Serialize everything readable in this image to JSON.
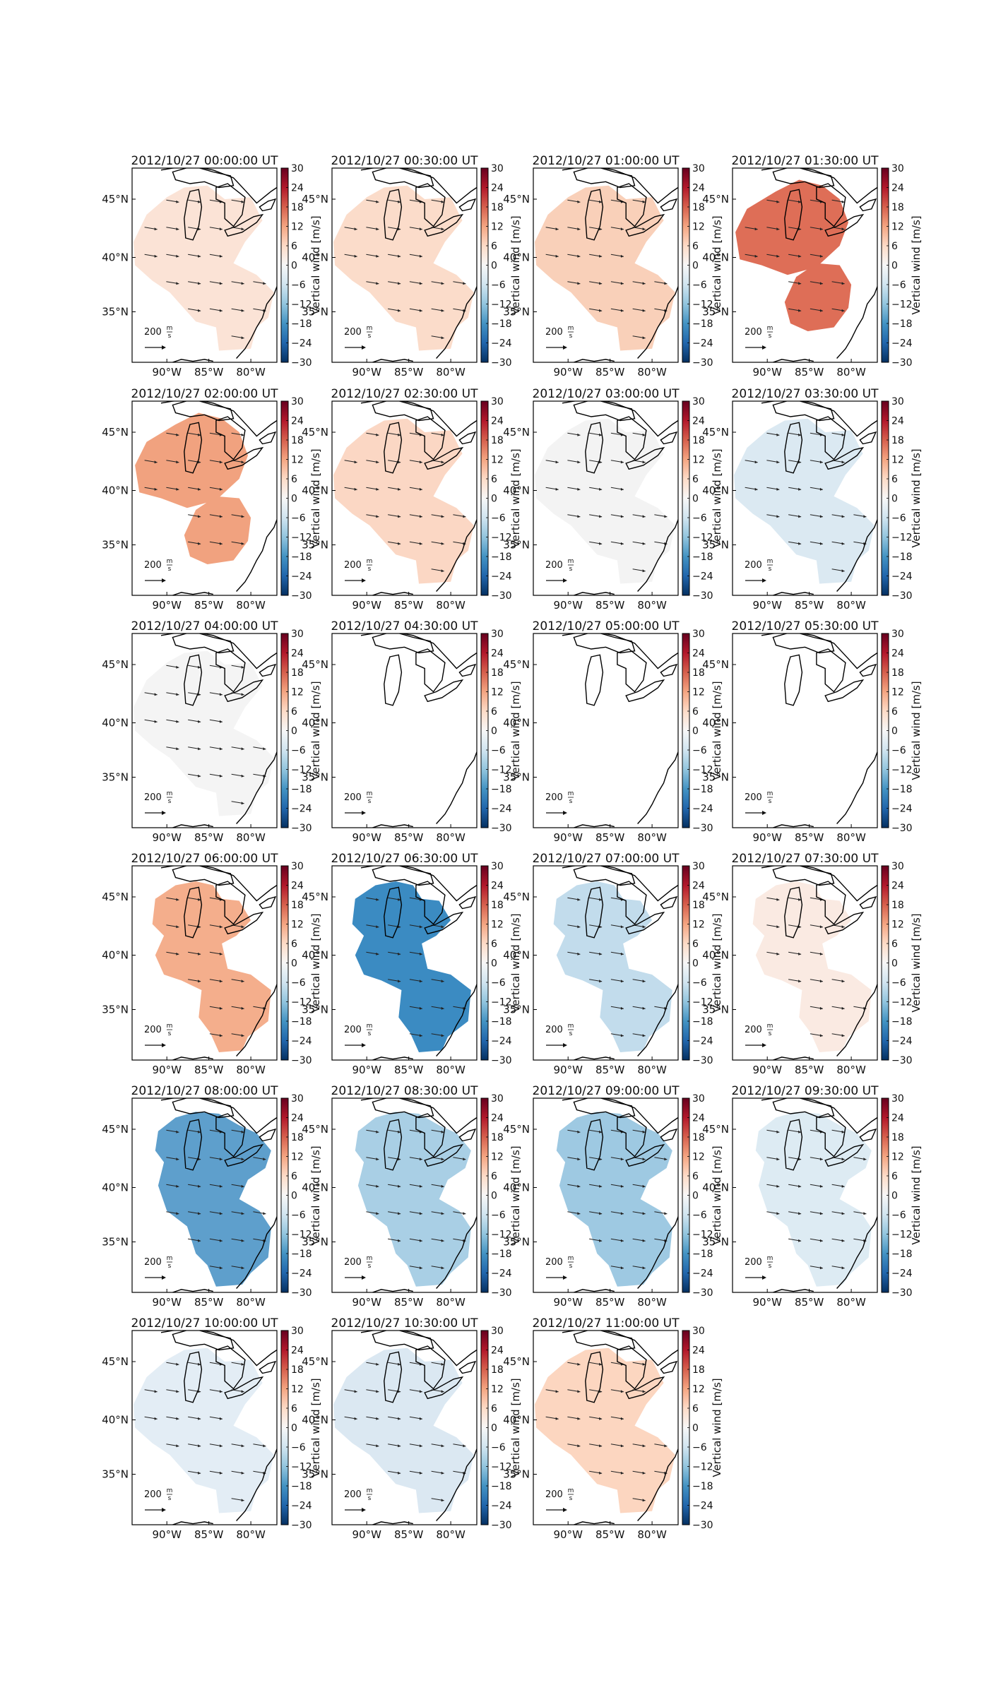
{
  "figure": {
    "colorbar": {
      "label": "Vertical wind [m/s]",
      "ticks": [
        "30",
        "24",
        "18",
        "12",
        "6",
        "0",
        "−6",
        "−12",
        "−18",
        "−24",
        "−30"
      ],
      "colormap": [
        "#67001f",
        "#b2182b",
        "#d6604d",
        "#f4a582",
        "#fddbc7",
        "#f7f7f7",
        "#d1e5f0",
        "#92c5de",
        "#4393c3",
        "#2166ac",
        "#053061"
      ],
      "range": [
        -30,
        30
      ]
    },
    "axes": {
      "xticks": [
        "90°W",
        "85°W",
        "80°W"
      ],
      "yticks": [
        "45°N",
        "40°N",
        "35°N"
      ]
    },
    "scale_key": {
      "number": "200",
      "unit_numerator": "m",
      "unit_denominator": "s"
    },
    "panels": [
      {
        "title": "2012/10/27 00:00:00 UT",
        "color": "#fbe3d6",
        "shape": "A"
      },
      {
        "title": "2012/10/27 00:30:00 UT",
        "color": "#fbdcca",
        "shape": "A"
      },
      {
        "title": "2012/10/27 01:00:00 UT",
        "color": "#f9d0b9",
        "shape": "A"
      },
      {
        "title": "2012/10/27 01:30:00 UT",
        "color": "#de6e57",
        "shape": "B"
      },
      {
        "title": "2012/10/27 02:00:00 UT",
        "color": "#f1a27f",
        "shape": "B"
      },
      {
        "title": "2012/10/27 02:30:00 UT",
        "color": "#fbd7c4",
        "shape": "A"
      },
      {
        "title": "2012/10/27 03:00:00 UT",
        "color": "#f3f3f3",
        "shape": "A"
      },
      {
        "title": "2012/10/27 03:30:00 UT",
        "color": "#dbe9f2",
        "shape": "A"
      },
      {
        "title": "2012/10/27 04:00:00 UT",
        "color": "#f4f4f4",
        "shape": "A"
      },
      {
        "title": "2012/10/27 04:30:00 UT",
        "color": "",
        "shape": "none"
      },
      {
        "title": "2012/10/27 05:00:00 UT",
        "color": "",
        "shape": "none"
      },
      {
        "title": "2012/10/27 05:30:00 UT",
        "color": "",
        "shape": "none"
      },
      {
        "title": "2012/10/27 06:00:00 UT",
        "color": "#f4ae8c",
        "shape": "C"
      },
      {
        "title": "2012/10/27 06:30:00 UT",
        "color": "#3b8bc2",
        "shape": "C"
      },
      {
        "title": "2012/10/27 07:00:00 UT",
        "color": "#c2dcec",
        "shape": "C"
      },
      {
        "title": "2012/10/27 07:30:00 UT",
        "color": "#faeae2",
        "shape": "C"
      },
      {
        "title": "2012/10/27 08:00:00 UT",
        "color": "#5e9fcc",
        "shape": "D"
      },
      {
        "title": "2012/10/27 08:30:00 UT",
        "color": "#a9cfe5",
        "shape": "D"
      },
      {
        "title": "2012/10/27 09:00:00 UT",
        "color": "#9ec9e2",
        "shape": "D"
      },
      {
        "title": "2012/10/27 09:30:00 UT",
        "color": "#ddebf3",
        "shape": "D"
      },
      {
        "title": "2012/10/27 10:00:00 UT",
        "color": "#e3edf5",
        "shape": "A"
      },
      {
        "title": "2012/10/27 10:30:00 UT",
        "color": "#dbe8f2",
        "shape": "A"
      },
      {
        "title": "2012/10/27 11:00:00 UT",
        "color": "#fcd6c0",
        "shape": "A"
      }
    ]
  }
}
